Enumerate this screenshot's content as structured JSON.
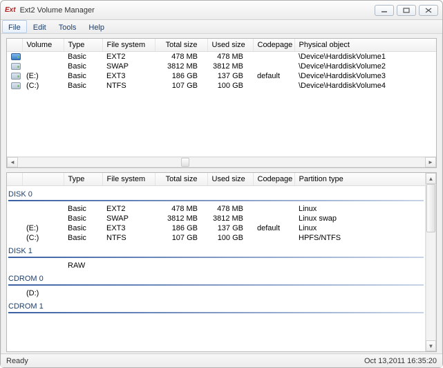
{
  "window": {
    "logo_text": "Ext",
    "title": "Ext2 Volume Manager"
  },
  "menu": [
    "File",
    "Edit",
    "Tools",
    "Help"
  ],
  "top_table": {
    "headers": {
      "volume": "Volume",
      "type": "Type",
      "fs": "File system",
      "total": "Total size",
      "used": "Used size",
      "codepage": "Codepage",
      "physical": "Physical object"
    },
    "rows": [
      {
        "icon": "blue",
        "volume": "",
        "type": "Basic",
        "fs": "EXT2",
        "total": "478 MB",
        "used": "478 MB",
        "codepage": "",
        "physical": "\\Device\\HarddiskVolume1"
      },
      {
        "icon": "gray",
        "volume": "",
        "type": "Basic",
        "fs": "SWAP",
        "total": "3812 MB",
        "used": "3812 MB",
        "codepage": "",
        "physical": "\\Device\\HarddiskVolume2"
      },
      {
        "icon": "gray",
        "volume": "(E:)",
        "type": "Basic",
        "fs": "EXT3",
        "total": "186 GB",
        "used": "137 GB",
        "codepage": "default",
        "physical": "\\Device\\HarddiskVolume3"
      },
      {
        "icon": "gray",
        "volume": "(C:)",
        "type": "Basic",
        "fs": "NTFS",
        "total": "107 GB",
        "used": "100 GB",
        "codepage": "",
        "physical": "\\Device\\HarddiskVolume4"
      }
    ]
  },
  "bottom_table": {
    "headers": {
      "type": "Type",
      "fs": "File system",
      "total": "Total size",
      "used": "Used size",
      "codepage": "Codepage",
      "ptype": "Partition type"
    },
    "groups": [
      {
        "name": "DISK 0",
        "rows": [
          {
            "letter": "",
            "type": "Basic",
            "fs": "EXT2",
            "total": "478 MB",
            "used": "478 MB",
            "codepage": "",
            "ptype": "Linux"
          },
          {
            "letter": "",
            "type": "Basic",
            "fs": "SWAP",
            "total": "3812 MB",
            "used": "3812 MB",
            "codepage": "",
            "ptype": "Linux swap"
          },
          {
            "letter": "(E:)",
            "type": "Basic",
            "fs": "EXT3",
            "total": "186 GB",
            "used": "137 GB",
            "codepage": "default",
            "ptype": "Linux"
          },
          {
            "letter": "(C:)",
            "type": "Basic",
            "fs": "NTFS",
            "total": "107 GB",
            "used": "100 GB",
            "codepage": "",
            "ptype": "HPFS/NTFS"
          }
        ]
      },
      {
        "name": "DISK 1",
        "rows": [
          {
            "letter": "",
            "type": "RAW",
            "fs": "",
            "total": "",
            "used": "",
            "codepage": "",
            "ptype": ""
          }
        ]
      },
      {
        "name": "CDROM 0",
        "rows": [
          {
            "letter": "(D:)",
            "type": "",
            "fs": "",
            "total": "",
            "used": "",
            "codepage": "",
            "ptype": ""
          }
        ]
      },
      {
        "name": "CDROM 1",
        "rows": []
      }
    ]
  },
  "status": {
    "left": "Ready",
    "right": "Oct 13,2011 16:35:20"
  },
  "colors": {
    "disk_line_start": "#3a5fa3",
    "disk_line_end": "#c7d3e6",
    "menu_text": "#1a3e6e"
  }
}
